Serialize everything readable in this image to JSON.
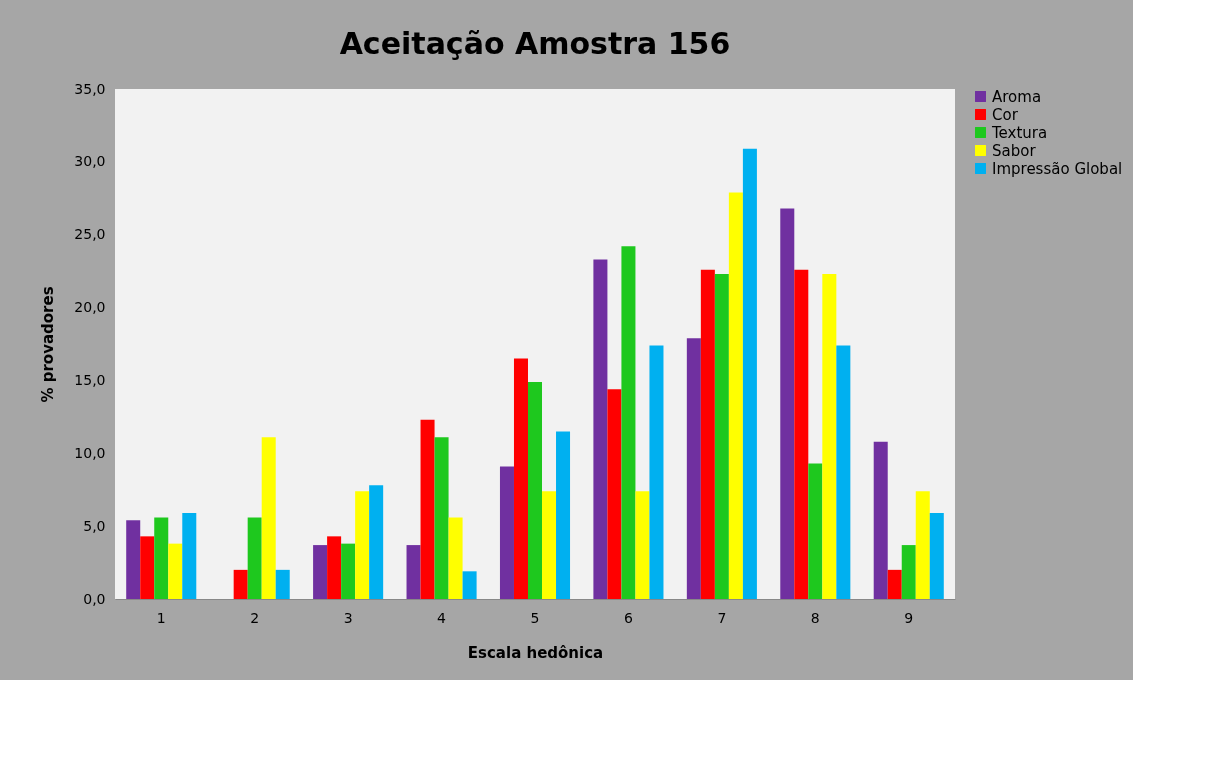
{
  "chart_data": {
    "type": "bar",
    "title": "Aceitação Amostra 156",
    "xlabel": "Escala hedônica",
    "ylabel": "% provadores",
    "categories": [
      "1",
      "2",
      "3",
      "4",
      "5",
      "6",
      "7",
      "8",
      "9"
    ],
    "series": [
      {
        "name": "Aroma",
        "color": "#7030a0",
        "values": [
          5.4,
          0,
          3.7,
          3.7,
          9.1,
          23.3,
          17.9,
          26.8,
          10.8
        ]
      },
      {
        "name": "Cor",
        "color": "#ff0000",
        "values": [
          4.3,
          2.0,
          4.3,
          12.3,
          16.5,
          14.4,
          22.6,
          22.6,
          2.0
        ]
      },
      {
        "name": "Textura",
        "color": "#1ec81e",
        "values": [
          5.6,
          5.6,
          3.8,
          11.1,
          14.9,
          24.2,
          22.3,
          9.3,
          3.7
        ]
      },
      {
        "name": "Sabor",
        "color": "#ffff00",
        "values": [
          3.8,
          11.1,
          7.4,
          5.6,
          7.4,
          7.4,
          27.9,
          22.3,
          7.4
        ]
      },
      {
        "name": "Impressão Global",
        "color": "#00b0f0",
        "values": [
          5.9,
          2.0,
          7.8,
          1.9,
          11.5,
          17.4,
          30.9,
          17.4,
          5.9
        ]
      }
    ],
    "ylim": [
      0,
      35
    ],
    "yticks": [
      {
        "value": 0,
        "label": "0,0"
      },
      {
        "value": 5,
        "label": "5,0"
      },
      {
        "value": 10,
        "label": "10,0"
      },
      {
        "value": 15,
        "label": "15,0"
      },
      {
        "value": 20,
        "label": "20,0"
      },
      {
        "value": 25,
        "label": "25,0"
      },
      {
        "value": 30,
        "label": "30,0"
      },
      {
        "value": 35,
        "label": "35,0"
      }
    ],
    "grid": false,
    "legend": "right"
  }
}
